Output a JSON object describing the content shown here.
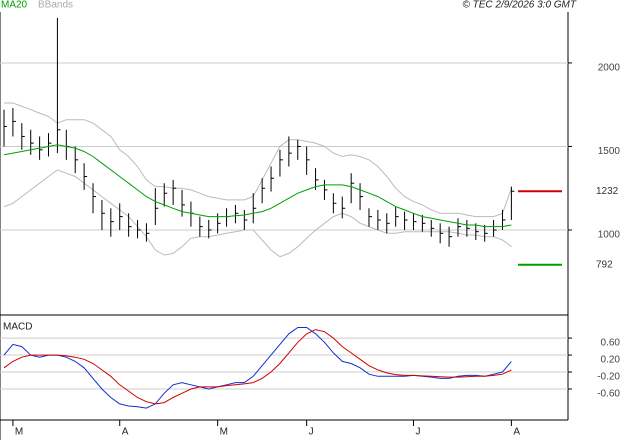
{
  "chart_data": [
    {
      "type": "ohlc",
      "source": "© TEC 2/9/2026 3:0 GMT",
      "xlim": [
        -0.45,
        63.36
      ],
      "ylim": [
        509,
        2305
      ],
      "yticks": [
        1000,
        1500,
        2000
      ],
      "grid": true,
      "bar_color": "#000000",
      "high": [
        1720,
        1730,
        1640,
        1600,
        1560,
        1580,
        2270,
        1600,
        1500,
        1400,
        1280,
        1180,
        1130,
        1160,
        1100,
        1060,
        1040,
        1250,
        1280,
        1300,
        1240,
        1170,
        1080,
        1060,
        1100,
        1130,
        1150,
        1120,
        1220,
        1310,
        1380,
        1480,
        1560,
        1540,
        1500,
        1370,
        1300,
        1220,
        1200,
        1340,
        1280,
        1130,
        1120,
        1100,
        1140,
        1110,
        1100,
        1090,
        1060,
        1040,
        1020,
        1070,
        1060,
        1040,
        1030,
        1060,
        1120,
        1260
      ],
      "low": [
        1500,
        1560,
        1480,
        1450,
        1420,
        1440,
        1460,
        1420,
        1340,
        1240,
        1100,
        1000,
        960,
        1000,
        960,
        950,
        930,
        1030,
        1140,
        1150,
        1080,
        1020,
        960,
        950,
        980,
        1020,
        1040,
        1000,
        1040,
        1160,
        1230,
        1320,
        1380,
        1420,
        1330,
        1240,
        1180,
        1100,
        1070,
        1160,
        1120,
        1020,
        1000,
        980,
        1020,
        1000,
        1000,
        990,
        960,
        920,
        900,
        960,
        960,
        940,
        930,
        960,
        1000,
        1060
      ],
      "close": [
        1620,
        1650,
        1560,
        1520,
        1480,
        1520,
        1600,
        1500,
        1420,
        1320,
        1200,
        1100,
        1050,
        1080,
        1020,
        1000,
        980,
        1130,
        1220,
        1250,
        1150,
        1100,
        1020,
        1000,
        1040,
        1080,
        1100,
        1060,
        1130,
        1250,
        1310,
        1420,
        1460,
        1500,
        1420,
        1300,
        1240,
        1160,
        1130,
        1280,
        1200,
        1080,
        1060,
        1040,
        1080,
        1060,
        1050,
        1040,
        1010,
        980,
        960,
        1020,
        1010,
        990,
        980,
        1000,
        1060,
        1232
      ],
      "series": [
        {
          "name": "MA20",
          "color": "#00a000",
          "values": [
            1450,
            1460,
            1470,
            1480,
            1490,
            1500,
            1510,
            1500,
            1490,
            1470,
            1440,
            1400,
            1360,
            1320,
            1280,
            1240,
            1200,
            1170,
            1150,
            1130,
            1110,
            1100,
            1090,
            1080,
            1080,
            1080,
            1085,
            1090,
            1100,
            1110,
            1130,
            1160,
            1190,
            1220,
            1240,
            1260,
            1270,
            1270,
            1270,
            1260,
            1240,
            1220,
            1200,
            1170,
            1140,
            1120,
            1100,
            1080,
            1070,
            1060,
            1050,
            1040,
            1030,
            1030,
            1020,
            1020,
            1020,
            1030
          ]
        },
        {
          "name": "BBands",
          "color": "#bbbbbb",
          "upper": [
            1760,
            1760,
            1740,
            1720,
            1700,
            1680,
            1640,
            1660,
            1660,
            1660,
            1640,
            1600,
            1560,
            1480,
            1440,
            1380,
            1300,
            1260,
            1260,
            1250,
            1250,
            1240,
            1220,
            1200,
            1190,
            1180,
            1180,
            1180,
            1200,
            1300,
            1400,
            1500,
            1540,
            1540,
            1530,
            1520,
            1500,
            1460,
            1440,
            1450,
            1440,
            1420,
            1380,
            1320,
            1250,
            1200,
            1170,
            1150,
            1120,
            1100,
            1100,
            1100,
            1090,
            1080,
            1080,
            1080,
            1100,
            1250
          ],
          "lower": [
            1140,
            1160,
            1200,
            1240,
            1280,
            1320,
            1360,
            1340,
            1320,
            1280,
            1240,
            1200,
            1160,
            1120,
            1080,
            1020,
            960,
            880,
            850,
            860,
            900,
            950,
            960,
            960,
            970,
            980,
            990,
            1000,
            1000,
            940,
            880,
            840,
            860,
            900,
            950,
            1000,
            1040,
            1080,
            1100,
            1080,
            1040,
            1020,
            1000,
            980,
            980,
            990,
            990,
            990,
            990,
            990,
            990,
            980,
            970,
            970,
            960,
            960,
            940,
            900
          ]
        }
      ],
      "levels": [
        {
          "value": 1232,
          "color": "#d00000"
        },
        {
          "value": 792,
          "color": "#00a000"
        }
      ]
    },
    {
      "type": "line",
      "title": "MACD",
      "xlim": [
        -0.45,
        63.36
      ],
      "ylim": [
        -1.33,
        1.12
      ],
      "yticks": [
        {
          "value": 0.6,
          "label": "0.60"
        },
        {
          "value": 0.2,
          "label": "0.20"
        },
        {
          "value": -0.2,
          "label": "-0.20"
        },
        {
          "value": -0.6,
          "label": "-0.60"
        }
      ],
      "grid": true,
      "xticks": [
        {
          "value": 1,
          "label": "M"
        },
        {
          "value": 13,
          "label": "A"
        },
        {
          "value": 24,
          "label": "M"
        },
        {
          "value": 34,
          "label": "J"
        },
        {
          "value": 46,
          "label": "J"
        },
        {
          "value": 57,
          "label": "A"
        }
      ],
      "series": [
        {
          "color": "#1030d0",
          "values": [
            0.2,
            0.45,
            0.4,
            0.2,
            0.15,
            0.2,
            0.2,
            0.15,
            0.05,
            -0.1,
            -0.35,
            -0.6,
            -0.8,
            -0.95,
            -1.0,
            -1.02,
            -1.05,
            -0.95,
            -0.7,
            -0.5,
            -0.45,
            -0.5,
            -0.55,
            -0.6,
            -0.55,
            -0.5,
            -0.45,
            -0.45,
            -0.3,
            -0.05,
            0.2,
            0.45,
            0.7,
            0.85,
            0.85,
            0.7,
            0.5,
            0.25,
            0.05,
            0.0,
            -0.1,
            -0.25,
            -0.3,
            -0.3,
            -0.3,
            -0.3,
            -0.28,
            -0.3,
            -0.32,
            -0.35,
            -0.35,
            -0.3,
            -0.28,
            -0.28,
            -0.3,
            -0.25,
            -0.2,
            0.05
          ]
        },
        {
          "color": "#d00000",
          "values": [
            -0.1,
            0.05,
            0.15,
            0.2,
            0.2,
            0.2,
            0.2,
            0.18,
            0.15,
            0.1,
            0.0,
            -0.15,
            -0.3,
            -0.5,
            -0.65,
            -0.8,
            -0.9,
            -0.95,
            -0.92,
            -0.8,
            -0.7,
            -0.6,
            -0.55,
            -0.55,
            -0.55,
            -0.52,
            -0.5,
            -0.48,
            -0.45,
            -0.35,
            -0.2,
            0.0,
            0.25,
            0.5,
            0.7,
            0.8,
            0.75,
            0.6,
            0.4,
            0.25,
            0.1,
            -0.05,
            -0.15,
            -0.22,
            -0.26,
            -0.28,
            -0.28,
            -0.29,
            -0.3,
            -0.31,
            -0.32,
            -0.32,
            -0.31,
            -0.3,
            -0.3,
            -0.28,
            -0.25,
            -0.15
          ]
        }
      ]
    }
  ]
}
